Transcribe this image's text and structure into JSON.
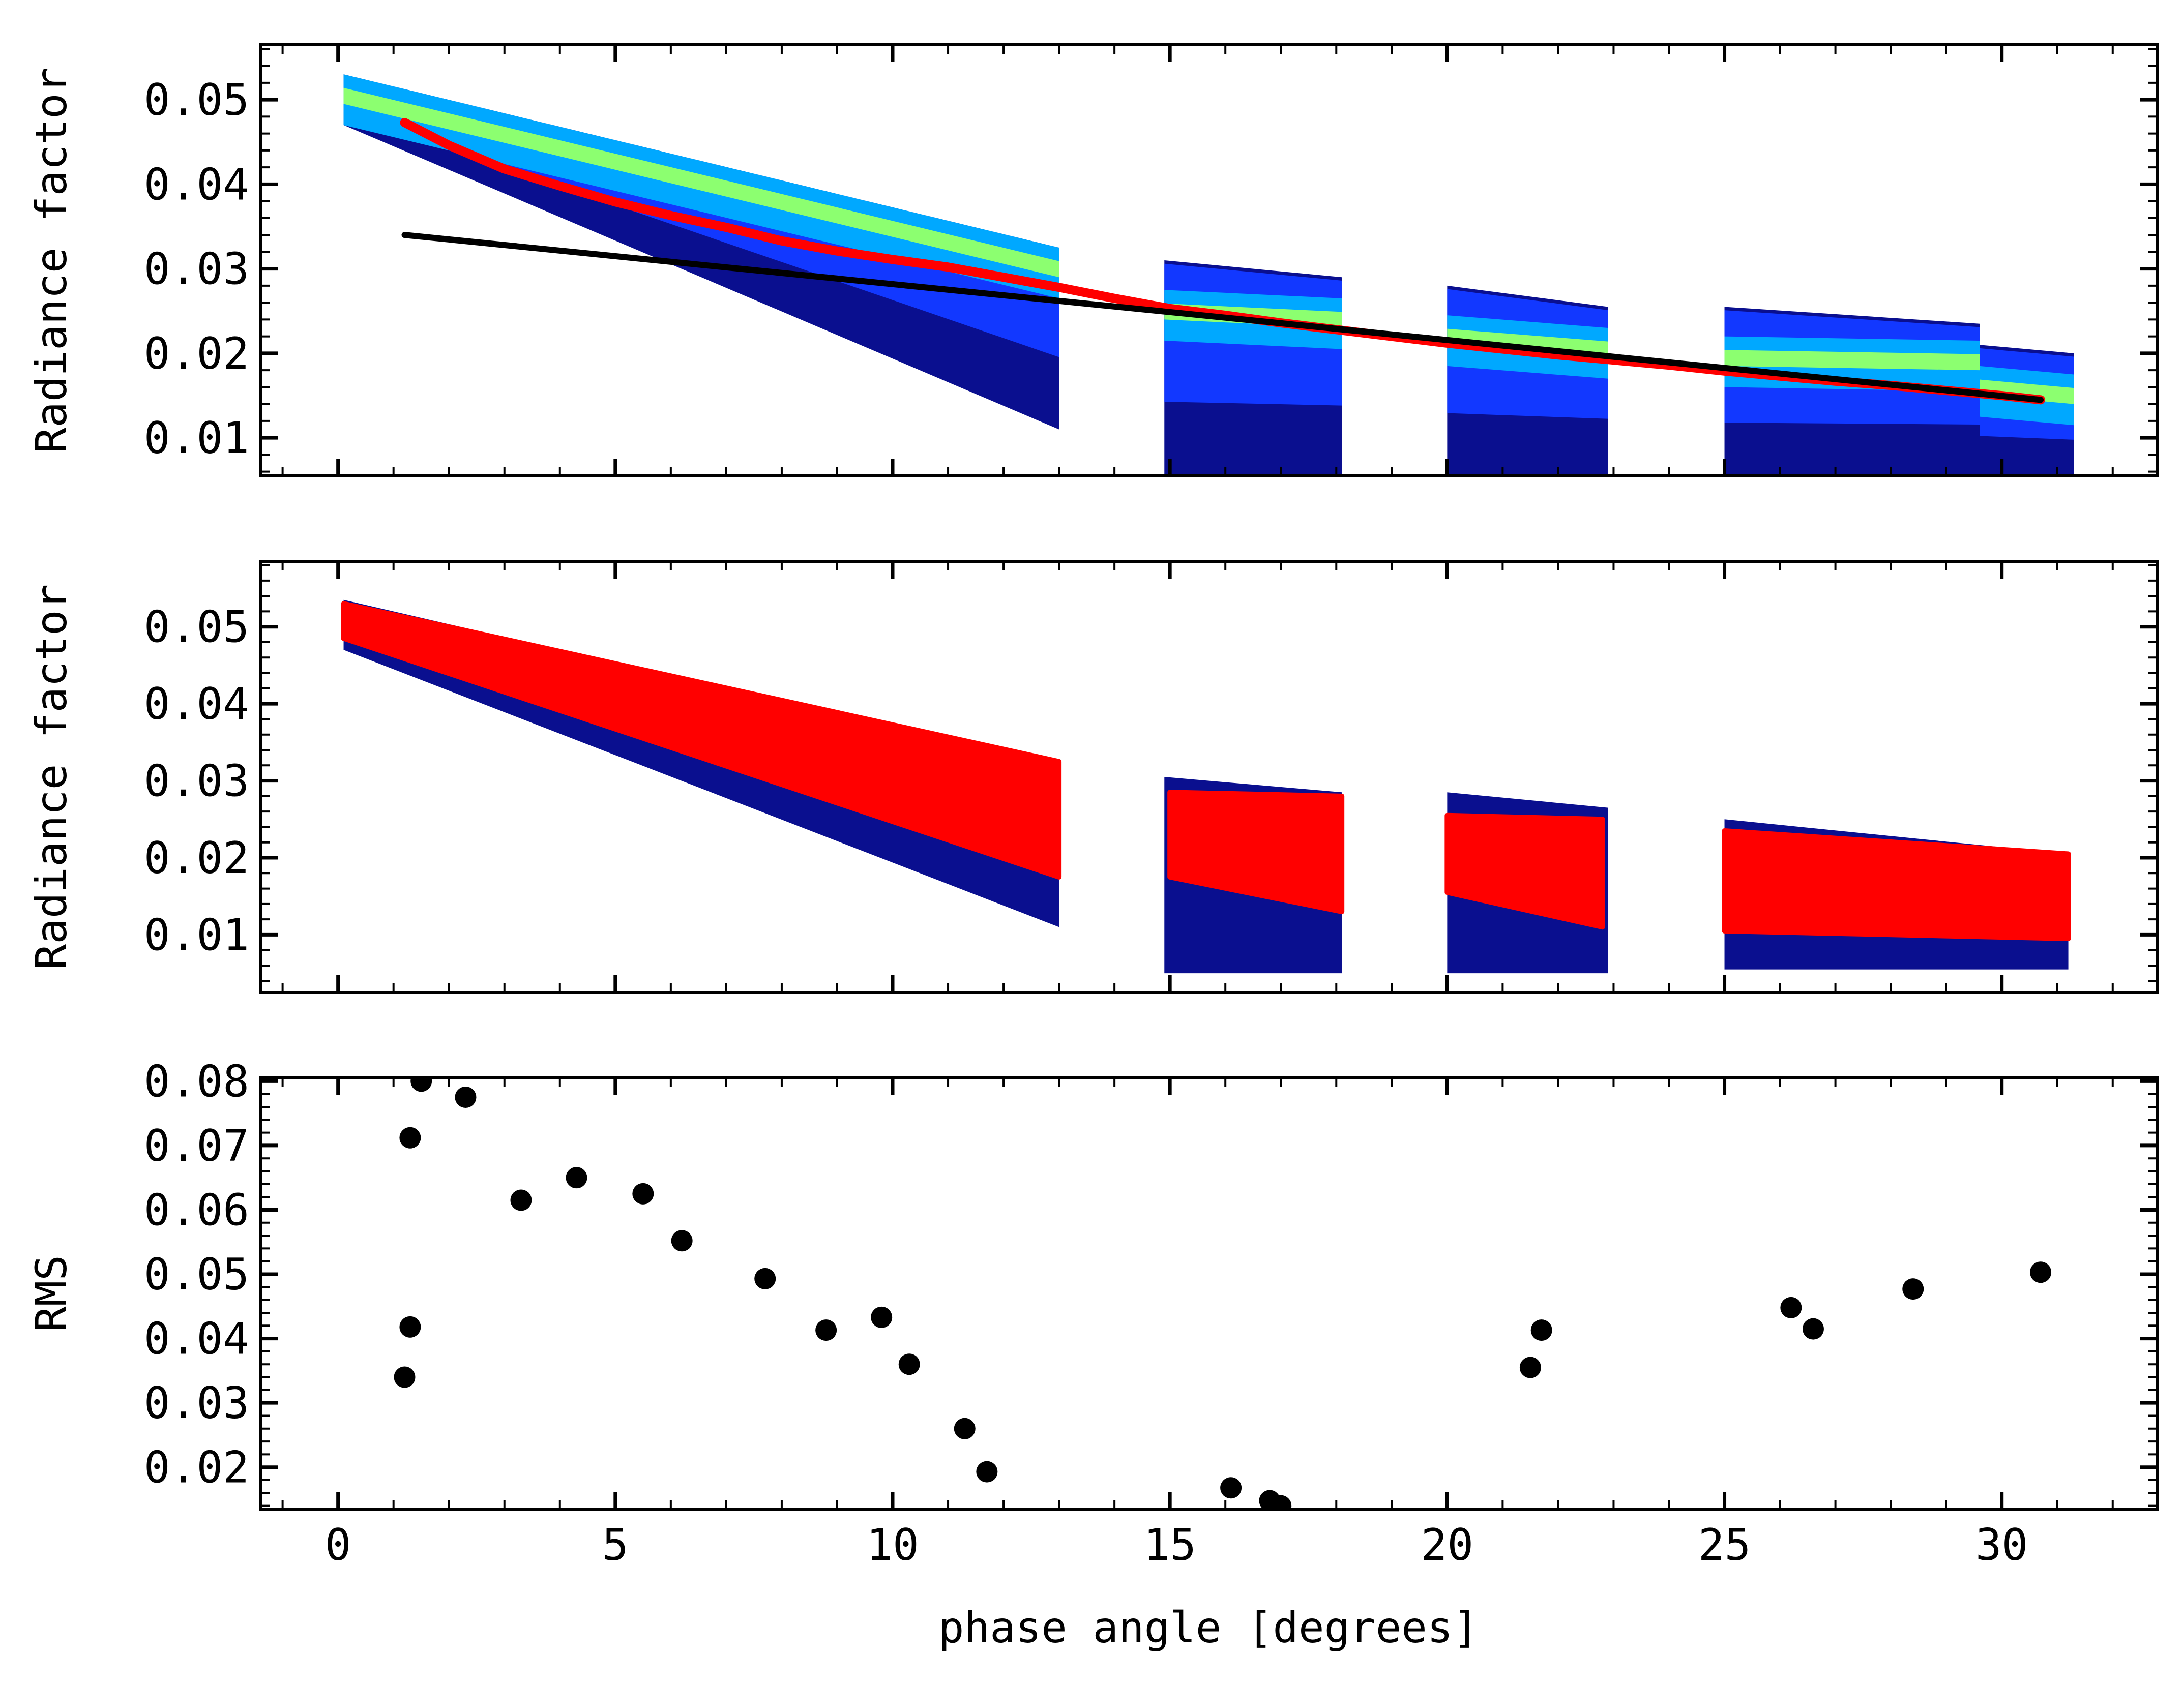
{
  "chart_data": [
    {
      "type": "hexbin_density",
      "panel": "top",
      "ylabel": "Radiance factor",
      "xlim": [
        -1.4,
        32.8
      ],
      "ylim": [
        0.0055,
        0.0565
      ],
      "yticks": [
        0.01,
        0.02,
        0.03,
        0.04,
        0.05
      ],
      "ytick_labels": [
        "0.01",
        "0.02",
        "0.03",
        "0.04",
        "0.05"
      ],
      "density_clusters": [
        {
          "x_range": [
            0.1,
            13.0
          ],
          "upper_start": 0.053,
          "upper_end": 0.0325,
          "lower_start": 0.047,
          "lower_end": 0.011,
          "ridge_start": 0.0505,
          "ridge_end": 0.03
        },
        {
          "x_range": [
            14.9,
            18.1
          ],
          "upper_start": 0.031,
          "upper_end": 0.029,
          "lower_start": 0.0055,
          "lower_end": 0.0055,
          "ridge_start": 0.025,
          "ridge_end": 0.024
        },
        {
          "x_range": [
            20.0,
            22.9
          ],
          "upper_start": 0.028,
          "upper_end": 0.0255,
          "lower_start": 0.0055,
          "lower_end": 0.0055,
          "ridge_start": 0.022,
          "ridge_end": 0.0205
        },
        {
          "x_range": [
            25.0,
            29.6
          ],
          "upper_start": 0.0255,
          "upper_end": 0.0235,
          "lower_start": 0.0055,
          "lower_end": 0.0055,
          "ridge_start": 0.0195,
          "ridge_end": 0.019
        },
        {
          "x_range": [
            29.6,
            31.3
          ],
          "upper_start": 0.021,
          "upper_end": 0.02,
          "lower_start": 0.0055,
          "lower_end": 0.0055,
          "ridge_start": 0.016,
          "ridge_end": 0.015
        }
      ],
      "series": [
        {
          "name": "model fit (red)",
          "color": "#ff0000",
          "x": [
            1.2,
            2.0,
            3.0,
            4.0,
            5.0,
            6.0,
            7.0,
            8.0,
            9.0,
            10.0,
            11.0,
            12.0,
            13.0,
            14.0,
            15.0,
            16.0,
            17.0,
            18.0,
            19.0,
            20.0,
            21.0,
            22.0,
            23.0,
            24.0,
            25.0,
            26.0,
            27.0,
            28.0,
            29.0,
            30.0,
            30.7
          ],
          "y": [
            0.0473,
            0.0446,
            0.0418,
            0.0398,
            0.0379,
            0.0363,
            0.0349,
            0.0333,
            0.0321,
            0.0311,
            0.0302,
            0.029,
            0.0278,
            0.0265,
            0.0253,
            0.0245,
            0.0236,
            0.0228,
            0.022,
            0.0212,
            0.0205,
            0.0198,
            0.0192,
            0.0186,
            0.0179,
            0.0173,
            0.0167,
            0.0162,
            0.0156,
            0.015,
            0.0145
          ]
        },
        {
          "name": "linear fit (black)",
          "color": "#000000",
          "x": [
            1.2,
            30.7
          ],
          "y": [
            0.034,
            0.0145
          ]
        }
      ]
    },
    {
      "type": "hexbin_density",
      "panel": "middle",
      "ylabel": "Radiance factor",
      "xlim": [
        -1.4,
        32.8
      ],
      "ylim": [
        0.0025,
        0.0585
      ],
      "yticks": [
        0.01,
        0.02,
        0.03,
        0.04,
        0.05
      ],
      "ytick_labels": [
        "0.01",
        "0.02",
        "0.03",
        "0.04",
        "0.05"
      ],
      "navy_clusters": [
        {
          "x_range": [
            0.1,
            13.0
          ],
          "upper_start": 0.0535,
          "upper_end": 0.032,
          "lower_start": 0.047,
          "lower_end": 0.011
        },
        {
          "x_range": [
            14.9,
            18.1
          ],
          "upper_start": 0.0305,
          "upper_end": 0.0285,
          "lower_start": 0.005,
          "lower_end": 0.005
        },
        {
          "x_range": [
            20.0,
            22.9
          ],
          "upper_start": 0.0285,
          "upper_end": 0.0265,
          "lower_start": 0.005,
          "lower_end": 0.005
        },
        {
          "x_range": [
            25.0,
            31.2
          ],
          "upper_start": 0.025,
          "upper_end": 0.0205,
          "lower_start": 0.0055,
          "lower_end": 0.0055
        }
      ],
      "model_bands": [
        {
          "x_range": [
            0.1,
            13.0
          ],
          "upper_start": 0.053,
          "upper_end": 0.0325,
          "lower_start": 0.0485,
          "lower_end": 0.0175,
          "color": "#ff0000"
        },
        {
          "x_range": [
            15.0,
            18.1
          ],
          "upper_start": 0.0285,
          "upper_end": 0.028,
          "lower_start": 0.0175,
          "lower_end": 0.013,
          "color": "#ff0000"
        },
        {
          "x_range": [
            20.0,
            22.8
          ],
          "upper_start": 0.0255,
          "upper_end": 0.025,
          "lower_start": 0.0155,
          "lower_end": 0.011,
          "color": "#ff0000"
        },
        {
          "x_range": [
            25.0,
            31.2
          ],
          "upper_start": 0.0235,
          "upper_end": 0.0205,
          "lower_start": 0.0105,
          "lower_end": 0.0095,
          "color": "#ff0000"
        }
      ]
    },
    {
      "type": "scatter",
      "panel": "bottom",
      "ylabel": "RMS",
      "xlabel": "phase angle [degrees]",
      "xlim": [
        -1.4,
        32.8
      ],
      "ylim": [
        0.0135,
        0.0805
      ],
      "xticks": [
        0,
        5,
        10,
        15,
        20,
        25,
        30
      ],
      "xtick_labels": [
        "0",
        "5",
        "10",
        "15",
        "20",
        "25",
        "30"
      ],
      "yticks": [
        0.02,
        0.03,
        0.04,
        0.05,
        0.06,
        0.07,
        0.08
      ],
      "ytick_labels": [
        "0.02",
        "0.03",
        "0.04",
        "0.05",
        "0.06",
        "0.07",
        "0.08"
      ],
      "series": [
        {
          "name": "RMS",
          "color": "#000000",
          "x": [
            1.2,
            1.3,
            1.3,
            1.5,
            2.3,
            3.3,
            4.3,
            5.5,
            6.2,
            7.7,
            8.8,
            9.8,
            10.3,
            11.3,
            11.7,
            16.1,
            16.8,
            17.0,
            21.5,
            21.7,
            26.2,
            26.6,
            28.4,
            30.7
          ],
          "y": [
            0.034,
            0.0418,
            0.0712,
            0.08,
            0.0775,
            0.0615,
            0.065,
            0.0625,
            0.0552,
            0.0493,
            0.0413,
            0.0433,
            0.036,
            0.026,
            0.0193,
            0.0168,
            0.0148,
            0.014,
            0.0355,
            0.0413,
            0.0448,
            0.0415,
            0.0477,
            0.0503
          ]
        }
      ]
    }
  ]
}
